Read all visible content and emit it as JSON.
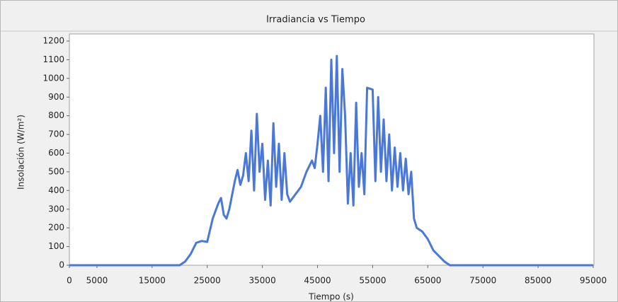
{
  "chart_data": {
    "type": "line",
    "title": "Irradiancia vs Tiempo",
    "x_label": "Tiempo (s)",
    "y_label": "Insolación (W/m²)",
    "color": "#4a78d8",
    "x": [
      0,
      20000,
      21000,
      22000,
      23000,
      24000,
      25000,
      26000,
      27000,
      27500,
      28000,
      28500,
      29000,
      30000,
      30500,
      31000,
      31500,
      32000,
      32500,
      33000,
      33500,
      34000,
      34500,
      35000,
      35500,
      36000,
      36500,
      37000,
      37500,
      38000,
      38500,
      39000,
      39500,
      40000,
      41000,
      42000,
      43000,
      44000,
      44500,
      45000,
      45500,
      46000,
      46500,
      47000,
      47500,
      48000,
      48500,
      49000,
      49500,
      50000,
      50500,
      51000,
      51500,
      52000,
      52500,
      53000,
      53500,
      54000,
      55000,
      55500,
      56000,
      56500,
      57000,
      57500,
      58000,
      58500,
      59000,
      59500,
      60000,
      60500,
      61000,
      61500,
      62000,
      62500,
      63000,
      64000,
      65000,
      66000,
      67000,
      68000,
      69000,
      95000
    ],
    "values": [
      0,
      0,
      20,
      60,
      120,
      130,
      125,
      250,
      330,
      360,
      270,
      250,
      300,
      450,
      510,
      430,
      480,
      600,
      450,
      720,
      400,
      810,
      500,
      650,
      350,
      560,
      320,
      760,
      420,
      650,
      350,
      600,
      380,
      340,
      380,
      420,
      500,
      560,
      520,
      650,
      800,
      500,
      950,
      450,
      1100,
      600,
      1120,
      500,
      1050,
      800,
      330,
      600,
      320,
      870,
      420,
      600,
      380,
      950,
      940,
      450,
      900,
      500,
      780,
      450,
      700,
      400,
      630,
      420,
      600,
      400,
      570,
      380,
      500,
      250,
      200,
      180,
      140,
      80,
      50,
      20,
      0,
      0
    ],
    "xlim": [
      0,
      95000
    ],
    "xticks": [
      0,
      5000,
      15000,
      25000,
      35000,
      45000,
      55000,
      65000,
      75000,
      85000,
      95000
    ],
    "ylim": [
      0,
      1200
    ],
    "yticks": [
      0,
      100,
      200,
      300,
      400,
      500,
      600,
      700,
      800,
      900,
      1000,
      1100,
      1200
    ]
  }
}
